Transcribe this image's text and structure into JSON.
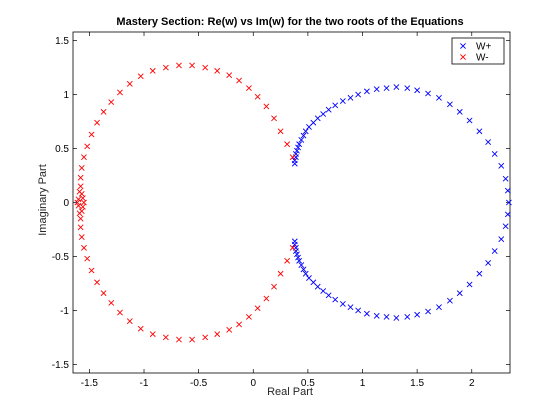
{
  "chart_data": {
    "type": "scatter",
    "title": "Mastery Section: Re(w) vs Im(w) for the two roots of the Equations",
    "xlabel": "Real Part",
    "ylabel": "Imaginary Part",
    "xlim": [
      -1.65,
      2.35
    ],
    "ylim": [
      -1.58,
      1.58
    ],
    "xticks": [
      -1.5,
      -1,
      -0.5,
      0,
      0.5,
      1,
      1.5,
      2
    ],
    "xtick_labels": [
      "-1.5",
      "-1",
      "-0.5",
      "0",
      "0.5",
      "1",
      "1.5",
      "2"
    ],
    "yticks": [
      -1.5,
      -1,
      -0.5,
      0,
      0.5,
      1,
      1.5
    ],
    "ytick_labels": [
      "-1.5",
      "-1",
      "-0.5",
      "0",
      "0.5",
      "1",
      "1.5"
    ],
    "grid": false,
    "legend_position": "top-right",
    "marker": "x",
    "series": [
      {
        "name": "W+",
        "color": "#0000ff",
        "points": [
          [
            0.38,
            0.36
          ],
          [
            0.38,
            0.39
          ],
          [
            0.39,
            0.42
          ],
          [
            0.39,
            0.45
          ],
          [
            0.4,
            0.48
          ],
          [
            0.41,
            0.51
          ],
          [
            0.42,
            0.54
          ],
          [
            0.44,
            0.58
          ],
          [
            0.46,
            0.62
          ],
          [
            0.48,
            0.66
          ],
          [
            0.51,
            0.7
          ],
          [
            0.55,
            0.74
          ],
          [
            0.59,
            0.78
          ],
          [
            0.64,
            0.82
          ],
          [
            0.69,
            0.86
          ],
          [
            0.75,
            0.9
          ],
          [
            0.82,
            0.94
          ],
          [
            0.89,
            0.97
          ],
          [
            0.96,
            1.0
          ],
          [
            1.04,
            1.03
          ],
          [
            1.13,
            1.05
          ],
          [
            1.22,
            1.06
          ],
          [
            1.31,
            1.07
          ],
          [
            1.41,
            1.06
          ],
          [
            1.5,
            1.04
          ],
          [
            1.6,
            1.01
          ],
          [
            1.7,
            0.97
          ],
          [
            1.8,
            0.91
          ],
          [
            1.89,
            0.84
          ],
          [
            1.98,
            0.76
          ],
          [
            2.07,
            0.66
          ],
          [
            2.15,
            0.56
          ],
          [
            2.21,
            0.45
          ],
          [
            2.27,
            0.34
          ],
          [
            2.31,
            0.22
          ],
          [
            2.33,
            0.11
          ],
          [
            2.34,
            0.0
          ],
          [
            2.33,
            -0.11
          ],
          [
            2.31,
            -0.22
          ],
          [
            2.27,
            -0.34
          ],
          [
            2.21,
            -0.45
          ],
          [
            2.15,
            -0.56
          ],
          [
            2.07,
            -0.66
          ],
          [
            1.98,
            -0.76
          ],
          [
            1.89,
            -0.84
          ],
          [
            1.8,
            -0.91
          ],
          [
            1.7,
            -0.97
          ],
          [
            1.6,
            -1.01
          ],
          [
            1.5,
            -1.04
          ],
          [
            1.41,
            -1.06
          ],
          [
            1.31,
            -1.07
          ],
          [
            1.22,
            -1.06
          ],
          [
            1.13,
            -1.05
          ],
          [
            1.04,
            -1.03
          ],
          [
            0.96,
            -1.0
          ],
          [
            0.89,
            -0.97
          ],
          [
            0.82,
            -0.94
          ],
          [
            0.75,
            -0.9
          ],
          [
            0.69,
            -0.86
          ],
          [
            0.64,
            -0.82
          ],
          [
            0.59,
            -0.78
          ],
          [
            0.55,
            -0.74
          ],
          [
            0.51,
            -0.7
          ],
          [
            0.48,
            -0.66
          ],
          [
            0.46,
            -0.62
          ],
          [
            0.44,
            -0.58
          ],
          [
            0.42,
            -0.54
          ],
          [
            0.41,
            -0.51
          ],
          [
            0.4,
            -0.48
          ],
          [
            0.39,
            -0.45
          ],
          [
            0.39,
            -0.42
          ],
          [
            0.38,
            -0.39
          ],
          [
            0.38,
            -0.36
          ]
        ]
      },
      {
        "name": "W-",
        "color": "#ff0000",
        "points": [
          [
            0.36,
            0.42
          ],
          [
            0.31,
            0.54
          ],
          [
            0.25,
            0.66
          ],
          [
            0.19,
            0.78
          ],
          [
            0.12,
            0.89
          ],
          [
            0.04,
            0.98
          ],
          [
            -0.04,
            1.06
          ],
          [
            -0.13,
            1.13
          ],
          [
            -0.22,
            1.18
          ],
          [
            -0.33,
            1.22
          ],
          [
            -0.44,
            1.25
          ],
          [
            -0.56,
            1.27
          ],
          [
            -0.68,
            1.27
          ],
          [
            -0.8,
            1.25
          ],
          [
            -0.92,
            1.22
          ],
          [
            -1.03,
            1.17
          ],
          [
            -1.13,
            1.1
          ],
          [
            -1.22,
            1.02
          ],
          [
            -1.3,
            0.93
          ],
          [
            -1.37,
            0.84
          ],
          [
            -1.43,
            0.74
          ],
          [
            -1.48,
            0.63
          ],
          [
            -1.52,
            0.52
          ],
          [
            -1.55,
            0.42
          ],
          [
            -1.57,
            0.32
          ],
          [
            -1.58,
            0.23
          ],
          [
            -1.58,
            0.15
          ],
          [
            -1.57,
            0.08
          ],
          [
            -1.56,
            0.04
          ],
          [
            -1.55,
            0.0
          ],
          [
            -1.56,
            -0.04
          ],
          [
            -1.57,
            -0.08
          ],
          [
            -1.58,
            -0.15
          ],
          [
            -1.58,
            -0.23
          ],
          [
            -1.57,
            -0.32
          ],
          [
            -1.55,
            -0.42
          ],
          [
            -1.52,
            -0.52
          ],
          [
            -1.48,
            -0.63
          ],
          [
            -1.43,
            -0.74
          ],
          [
            -1.37,
            -0.84
          ],
          [
            -1.3,
            -0.93
          ],
          [
            -1.22,
            -1.02
          ],
          [
            -1.13,
            -1.1
          ],
          [
            -1.03,
            -1.17
          ],
          [
            -0.92,
            -1.22
          ],
          [
            -0.8,
            -1.25
          ],
          [
            -0.68,
            -1.27
          ],
          [
            -0.56,
            -1.27
          ],
          [
            -0.44,
            -1.25
          ],
          [
            -0.33,
            -1.22
          ],
          [
            -0.22,
            -1.18
          ],
          [
            -0.13,
            -1.13
          ],
          [
            -0.04,
            -1.06
          ],
          [
            0.04,
            -0.98
          ],
          [
            0.12,
            -0.89
          ],
          [
            0.19,
            -0.78
          ],
          [
            0.25,
            -0.66
          ],
          [
            0.31,
            -0.54
          ],
          [
            0.36,
            -0.42
          ],
          [
            -1.6,
            0.03
          ],
          [
            -1.61,
            0.0
          ],
          [
            -1.6,
            -0.03
          ],
          [
            -1.59,
            0.1
          ],
          [
            -1.59,
            -0.1
          ]
        ]
      }
    ]
  }
}
